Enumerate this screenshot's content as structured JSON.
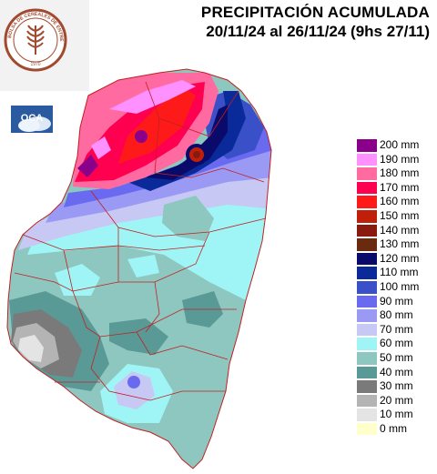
{
  "title": {
    "line1": "PRECIPITACIÓN ACUMULADA",
    "line2": "20/11/24 al 26/11/24 (9hs 27/11)"
  },
  "logo": {
    "text": "BOLSA DE CEREALES DE ENTRE RIOS",
    "year": "1970",
    "icon": "wheat-seal-icon"
  },
  "badge": {
    "text": "OCA",
    "icon": "cloud-logo-icon"
  },
  "legend": [
    {
      "label": "200 mm",
      "color": "#8b008b"
    },
    {
      "label": "190 mm",
      "color": "#ff90ff"
    },
    {
      "label": "180 mm",
      "color": "#ff6aa0"
    },
    {
      "label": "170 mm",
      "color": "#ff0050"
    },
    {
      "label": "160 mm",
      "color": "#ff1a1a"
    },
    {
      "label": "150 mm",
      "color": "#c0200a"
    },
    {
      "label": "140 mm",
      "color": "#8a1a10"
    },
    {
      "label": "130 mm",
      "color": "#6a2a10"
    },
    {
      "label": "120 mm",
      "color": "#0a0a6a"
    },
    {
      "label": "110 mm",
      "color": "#0a2a9a"
    },
    {
      "label": "100 mm",
      "color": "#3a50c8"
    },
    {
      "label": "90 mm",
      "color": "#6a6af0"
    },
    {
      "label": "80 mm",
      "color": "#9a9af5"
    },
    {
      "label": "70 mm",
      "color": "#c8c8f5"
    },
    {
      "label": "60 mm",
      "color": "#9ff5f5"
    },
    {
      "label": "50 mm",
      "color": "#8ec6c0"
    },
    {
      "label": "40 mm",
      "color": "#5a9a96"
    },
    {
      "label": "30 mm",
      "color": "#7a7a7a"
    },
    {
      "label": "20 mm",
      "color": "#b4b4b4"
    },
    {
      "label": "10 mm",
      "color": "#e4e4e4"
    },
    {
      "label": "0 mm",
      "color": "#ffffcc"
    }
  ]
}
